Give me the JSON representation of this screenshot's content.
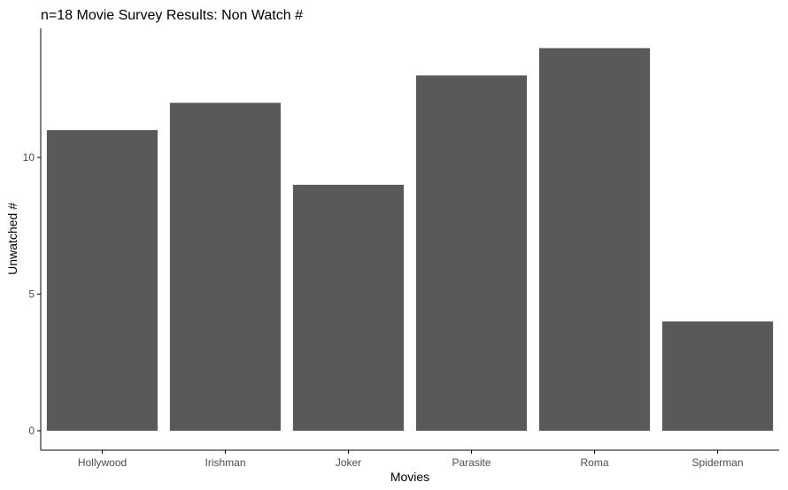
{
  "chart_data": {
    "type": "bar",
    "title": "n=18 Movie Survey Results: Non Watch #",
    "xlabel": "Movies",
    "ylabel": "Unwatched #",
    "categories": [
      "Hollywood",
      "Irishman",
      "Joker",
      "Parasite",
      "Roma",
      "Spiderman"
    ],
    "values": [
      11,
      12,
      9,
      13,
      14,
      4
    ],
    "yticks": [
      0,
      5,
      10
    ],
    "ylim": [
      0,
      14.7
    ],
    "grid": false,
    "bar_color": "#595959"
  }
}
